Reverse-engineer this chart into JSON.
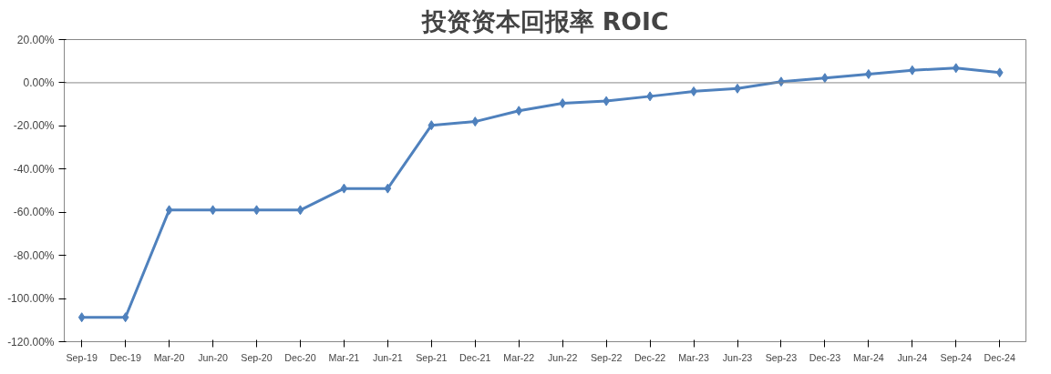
{
  "chart_data": {
    "type": "line",
    "title": "投资资本回报率 ROIC",
    "categories": [
      "Sep-19",
      "Dec-19",
      "Mar-20",
      "Jun-20",
      "Sep-20",
      "Dec-20",
      "Mar-21",
      "Jun-21",
      "Sep-21",
      "Dec-21",
      "Mar-22",
      "Jun-22",
      "Sep-22",
      "Dec-22",
      "Mar-23",
      "Jun-23",
      "Sep-23",
      "Dec-23",
      "Mar-24",
      "Jun-24",
      "Sep-24",
      "Dec-24"
    ],
    "series": [
      {
        "color": "#4f81bd",
        "values": [
          -108.7,
          -108.7,
          -59,
          -59,
          -59,
          -59,
          -49,
          -49,
          -19.7,
          -18,
          -13,
          -9.5,
          -8.5,
          -6.3,
          -4,
          -2.7,
          0.5,
          2.2,
          4,
          5.8,
          6.8,
          4.7
        ]
      }
    ],
    "ylim": [
      -120,
      20
    ],
    "yticks": [
      {
        "value": -120,
        "label": "-120.00%"
      },
      {
        "value": -100,
        "label": "-100.00%"
      },
      {
        "value": -80,
        "label": "-80.00%"
      },
      {
        "value": -60,
        "label": "-60.00%"
      },
      {
        "value": -40,
        "label": "-40.00%"
      },
      {
        "value": -20,
        "label": "-20.00%"
      },
      {
        "value": 0,
        "label": "0.00%"
      },
      {
        "value": 20,
        "label": "20.00%"
      }
    ],
    "ref_lines": [
      {
        "axis": "y",
        "value": 0,
        "color": "#888888"
      }
    ],
    "marker": "diamond",
    "line_style": "solid"
  }
}
